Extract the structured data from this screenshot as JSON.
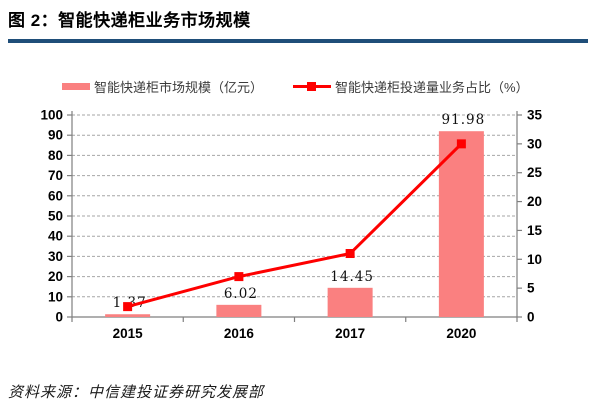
{
  "figure": {
    "title": "图 2：智能快递柜业务市场规模",
    "source": "资料来源：中信建投证券研究发展部"
  },
  "colors": {
    "bar": "#fa8080",
    "line": "#fe0000",
    "title_rule": "#1f4e79",
    "grid": "#a6a6a6",
    "axis": "#7f7f7f",
    "tick_text": "#000000"
  },
  "legend": [
    {
      "label": "智能快递柜市场规模（亿元）",
      "marker": "bar-swatch"
    },
    {
      "label": "智能快递柜投递量业务占比（%）",
      "marker": "line-swatch"
    }
  ],
  "chart_data": {
    "type": "bar",
    "subtype": "bar+line combo, dual axis",
    "categories": [
      "2015",
      "2016",
      "2017",
      "2020"
    ],
    "series": [
      {
        "name": "智能快递柜市场规模（亿元）",
        "type": "bar",
        "axis": "left",
        "values": [
          1.37,
          6.02,
          14.45,
          91.98
        ],
        "data_labels": [
          "1.37",
          "6.02",
          "14.45",
          "91.98"
        ]
      },
      {
        "name": "智能快递柜投递量业务占比（%）",
        "type": "line",
        "axis": "right",
        "values": [
          1.8,
          7,
          11,
          30
        ]
      }
    ],
    "left_axis": {
      "min": 0,
      "max": 100,
      "step": 10,
      "ticks": [
        "0",
        "10",
        "20",
        "30",
        "40",
        "50",
        "60",
        "70",
        "80",
        "90",
        "100"
      ]
    },
    "right_axis": {
      "min": 0,
      "max": 35,
      "step": 5,
      "ticks": [
        "0",
        "5",
        "10",
        "15",
        "20",
        "25",
        "30",
        "35"
      ]
    },
    "grid": "horizontal dashed",
    "legend_position": "top"
  }
}
